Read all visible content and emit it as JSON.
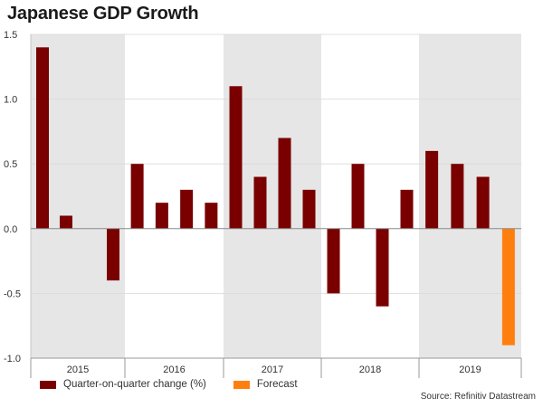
{
  "chart_data": {
    "type": "bar",
    "title": "Japanese GDP Growth",
    "categories": [
      "2015 Q1",
      "2015 Q2",
      "2015 Q3",
      "2015 Q4",
      "2016 Q1",
      "2016 Q2",
      "2016 Q3",
      "2016 Q4",
      "2017 Q1",
      "2017 Q2",
      "2017 Q3",
      "2017 Q4",
      "2018 Q1",
      "2018 Q2",
      "2018 Q3",
      "2018 Q4",
      "2019 Q1",
      "2019 Q2",
      "2019 Q3",
      "2019 Q4"
    ],
    "years": [
      "2015",
      "2016",
      "2017",
      "2018",
      "2019"
    ],
    "series": [
      {
        "name": "Quarter-on-quarter change (%)",
        "color": "#7a0000",
        "values": [
          1.4,
          0.1,
          0.0,
          -0.4,
          0.5,
          0.2,
          0.3,
          0.2,
          1.1,
          0.4,
          0.7,
          0.3,
          -0.5,
          0.5,
          -0.6,
          0.3,
          0.6,
          0.5,
          0.4,
          null
        ]
      },
      {
        "name": "Forecast",
        "color": "#ff7f0e",
        "values": [
          null,
          null,
          null,
          null,
          null,
          null,
          null,
          null,
          null,
          null,
          null,
          null,
          null,
          null,
          null,
          null,
          null,
          null,
          null,
          -0.9
        ]
      }
    ],
    "ylim": [
      -1.0,
      1.5
    ],
    "yticks": [
      "1.5",
      "1.0",
      "0.5",
      "0.0",
      "-0.5",
      "-1.0"
    ],
    "ytick_values": [
      1.5,
      1.0,
      0.5,
      0.0,
      -0.5,
      -1.0
    ],
    "shaded_years": [
      "2015",
      "2017",
      "2019"
    ],
    "grid": true,
    "legend": "bottom-left",
    "source": "Source: Refinitiv Datastream"
  }
}
